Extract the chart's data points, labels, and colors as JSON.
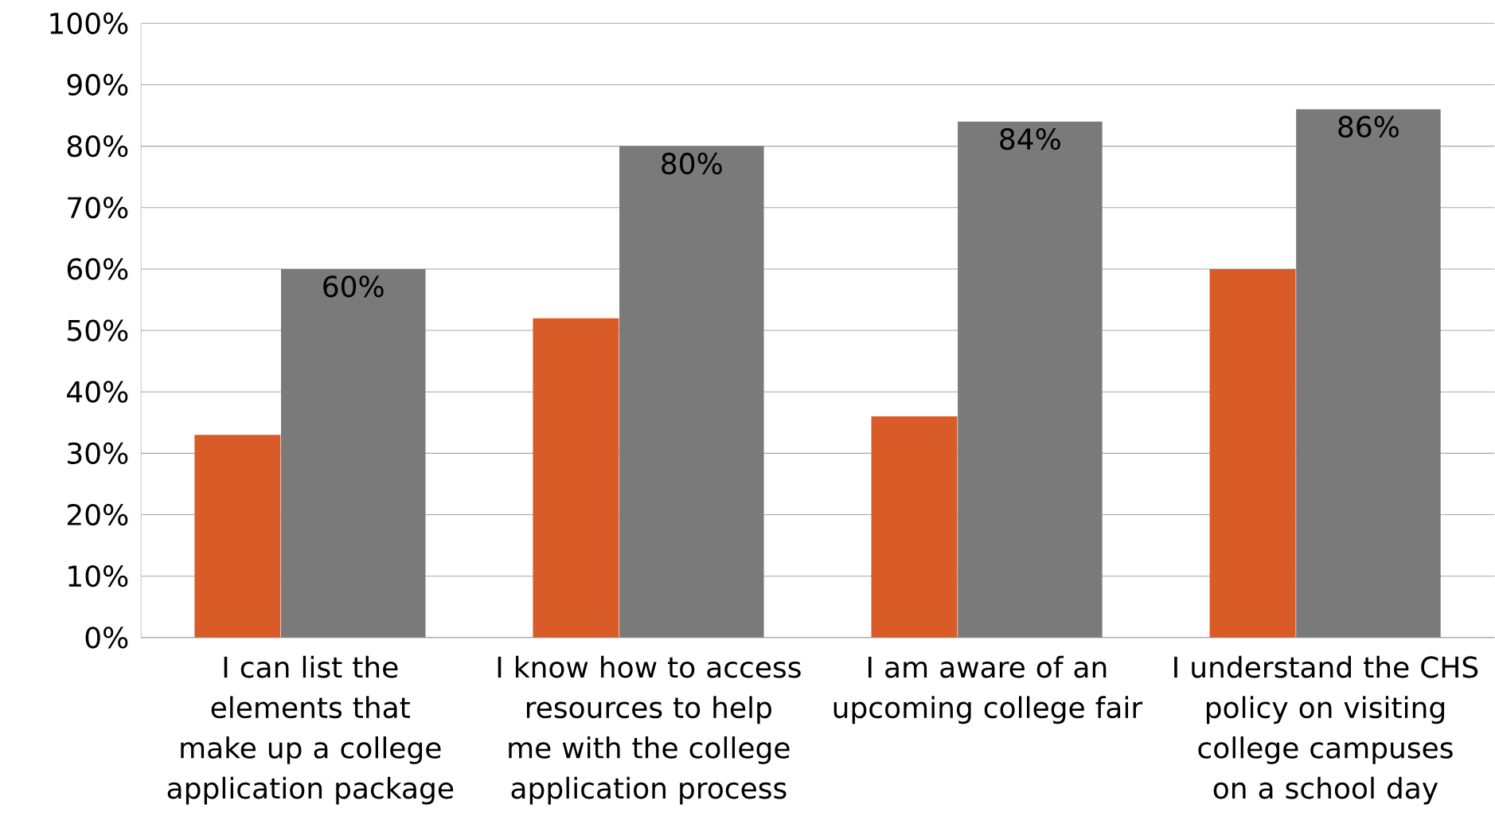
{
  "chart_data": {
    "type": "bar",
    "categories": [
      "I can list the elements that make up a college application package",
      "I know how to access resources to help me with the college application process",
      "I am aware of an upcoming college fair",
      "I understand the CHS policy on visiting college campuses on a school day"
    ],
    "series": [
      {
        "color": "#d95b27",
        "values": [
          33,
          52,
          36,
          60
        ]
      },
      {
        "color": "#7a7a7a",
        "values": [
          60,
          80,
          84,
          86
        ],
        "value_labels": [
          "60%",
          "80%",
          "84%",
          "86%"
        ]
      }
    ],
    "ylim": [
      0,
      100
    ],
    "yticks": [
      {
        "value": 0,
        "label": "0%"
      },
      {
        "value": 10,
        "label": "10%"
      },
      {
        "value": 20,
        "label": "20%"
      },
      {
        "value": 30,
        "label": "30%"
      },
      {
        "value": 40,
        "label": "40%"
      },
      {
        "value": 50,
        "label": "50%"
      },
      {
        "value": 60,
        "label": "60%"
      },
      {
        "value": 70,
        "label": "70%"
      },
      {
        "value": 80,
        "label": "80%"
      },
      {
        "value": 90,
        "label": "90%"
      },
      {
        "value": 100,
        "label": "100%"
      }
    ],
    "grid": "y",
    "legend": false
  }
}
